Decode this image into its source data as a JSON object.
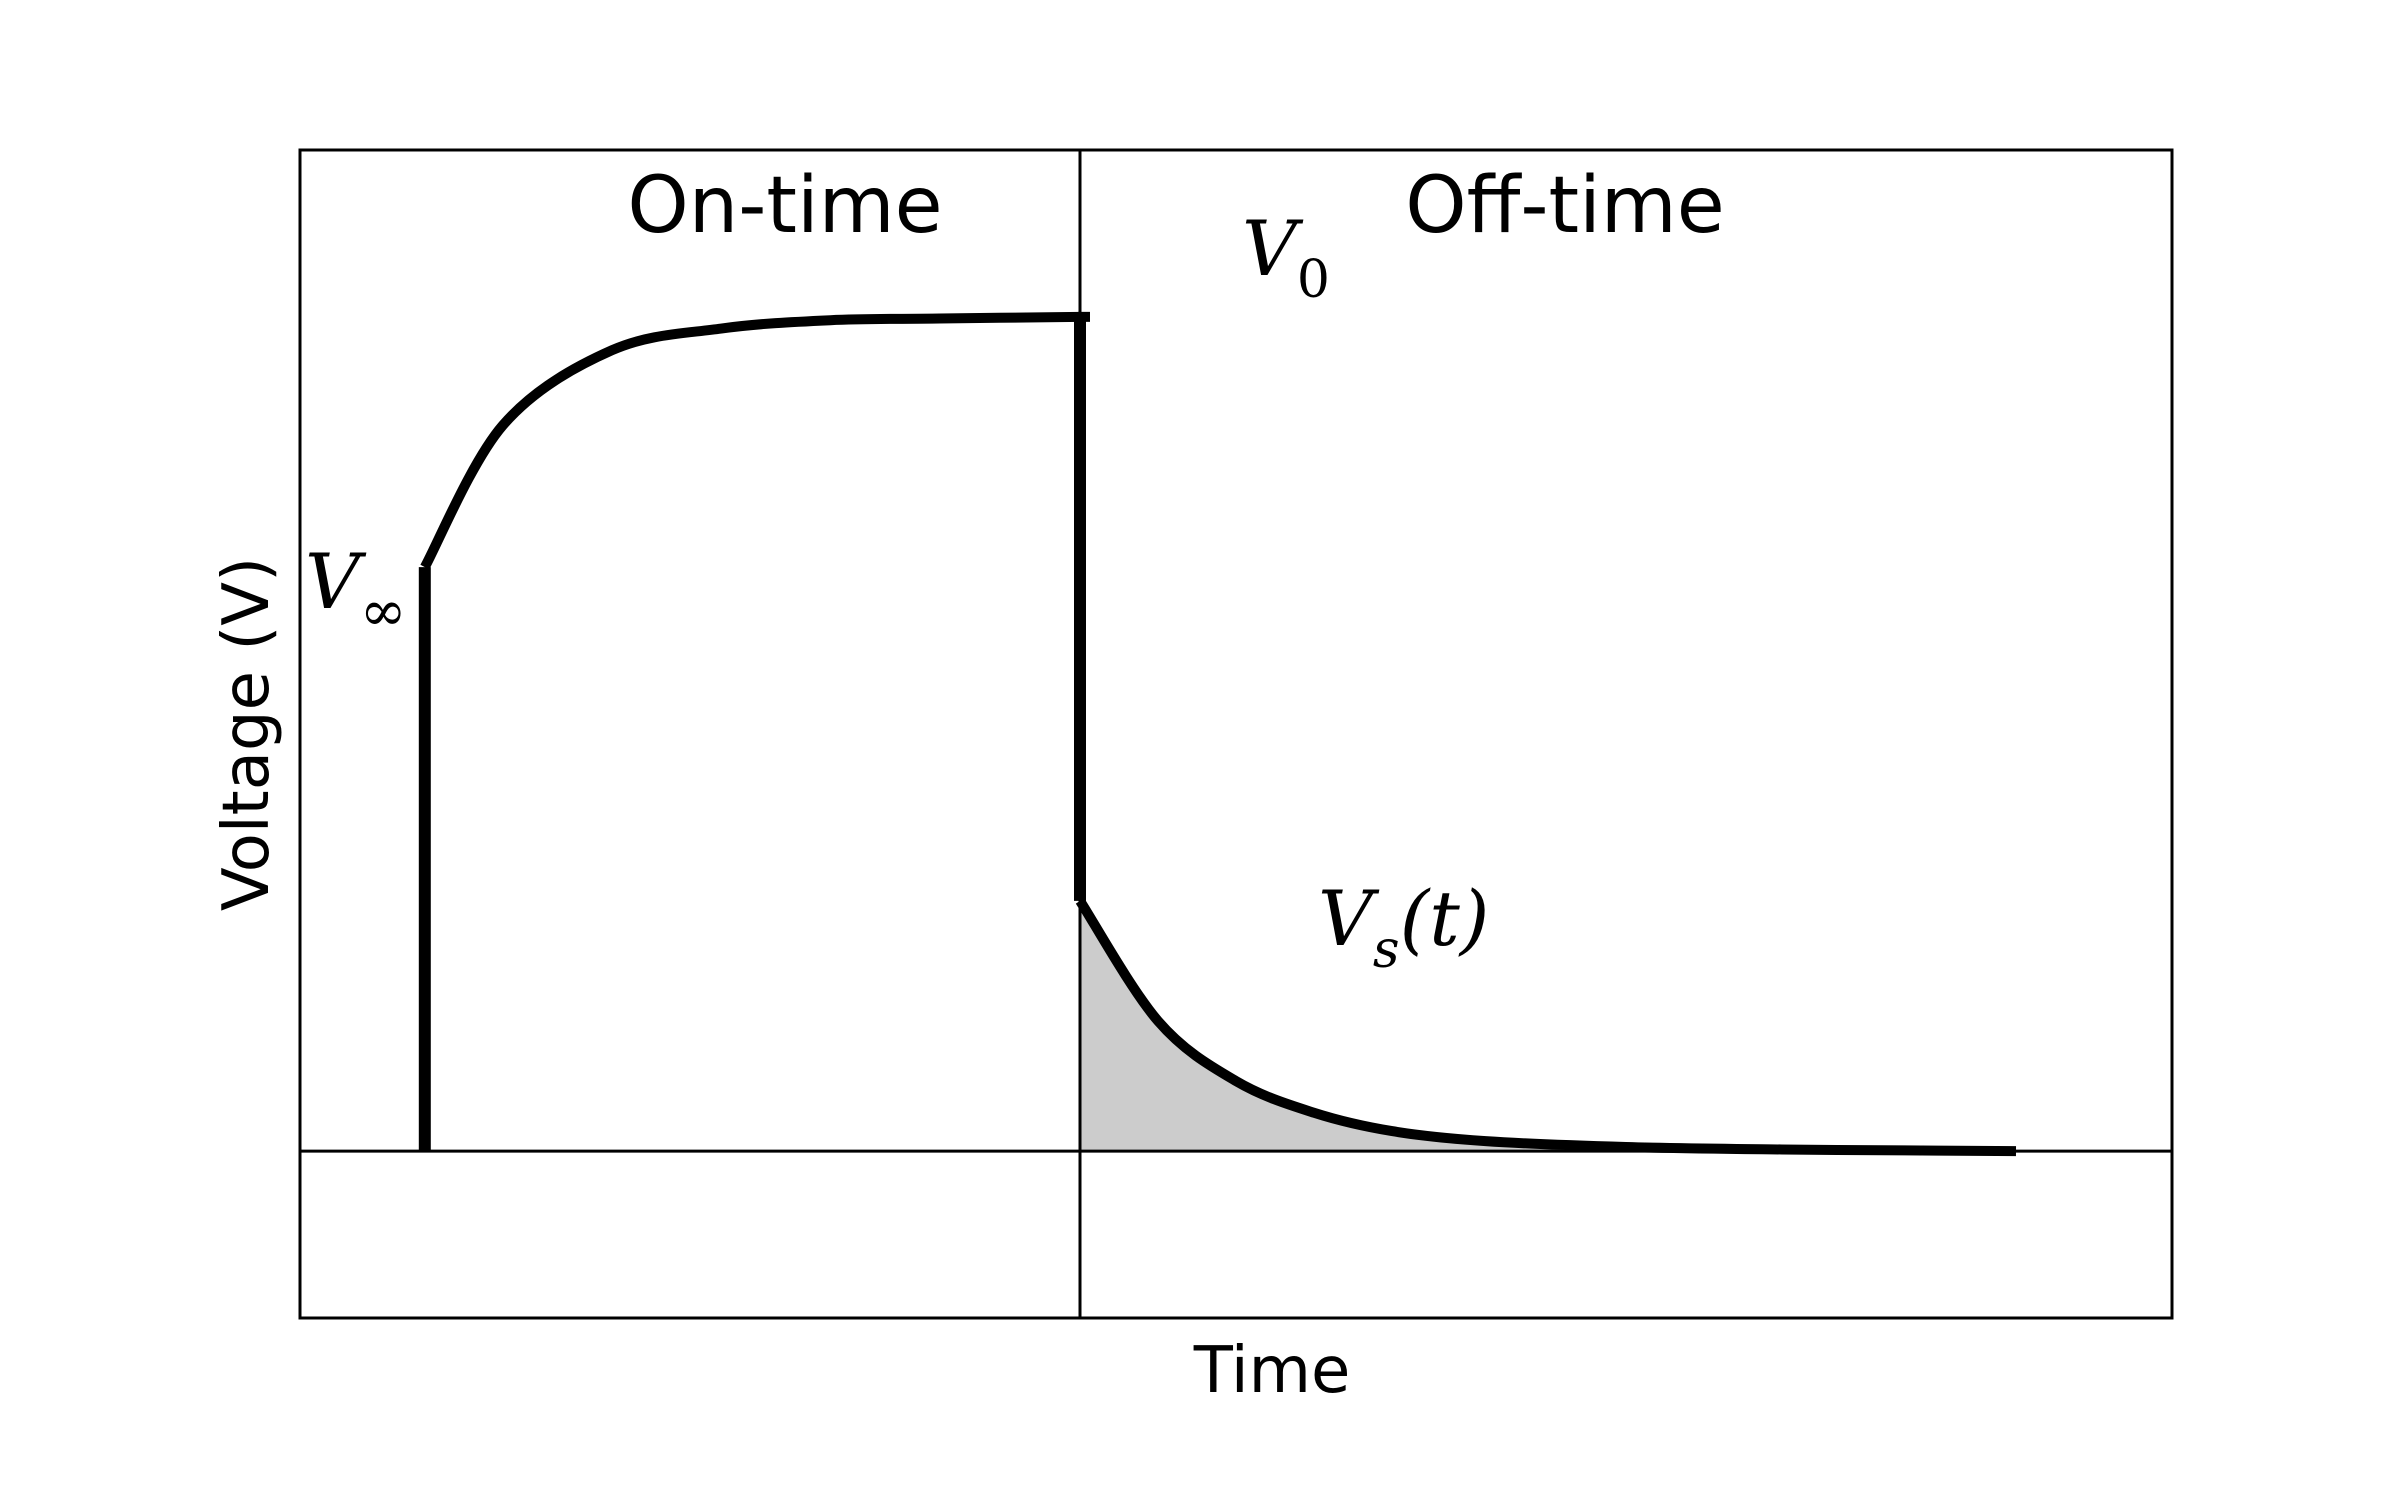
{
  "chart_data": {
    "type": "line",
    "title": "",
    "xlabel": "Time",
    "ylabel": "Voltage (V)",
    "grid": false,
    "legend": "none",
    "xlim": [
      0,
      12
    ],
    "ylim": [
      -1,
      6
    ],
    "regions": [
      {
        "label": "On-time",
        "x_range": [
          0,
          5
        ]
      },
      {
        "label": "Off-time",
        "x_range": [
          5,
          12
        ]
      }
    ],
    "reference_lines": {
      "horizontal_y": 0,
      "vertical_x": 5
    },
    "annotations": [
      {
        "id": "v_inf",
        "base": "V",
        "sub": "∞"
      },
      {
        "id": "v_0",
        "base": "V",
        "sub": "0"
      },
      {
        "id": "v_s",
        "base": "V",
        "sub": "s",
        "suffix": "(t)"
      }
    ],
    "series": [
      {
        "id": "charge",
        "x": [
          0.8,
          0.8,
          1.3,
          2.0,
          2.7,
          3.4,
          4.1,
          5.0
        ],
        "y": [
          0.0,
          3.5,
          4.35,
          4.8,
          4.93,
          4.98,
          4.99,
          5.0
        ]
      },
      {
        "id": "transient",
        "x": [
          5.0,
          5.0
        ],
        "y": [
          5.0,
          1.5
        ]
      },
      {
        "id": "decay",
        "x": [
          5.0,
          5.5,
          6.0,
          6.5,
          7.0,
          7.6,
          8.5,
          9.5,
          10.5,
          11.0
        ],
        "y": [
          1.5,
          0.78,
          0.42,
          0.23,
          0.12,
          0.06,
          0.025,
          0.01,
          0.003,
          0.0
        ]
      }
    ],
    "shaded_area": {
      "under_series": "decay",
      "fill": "#cccccc"
    },
    "line_color": "#000000"
  }
}
